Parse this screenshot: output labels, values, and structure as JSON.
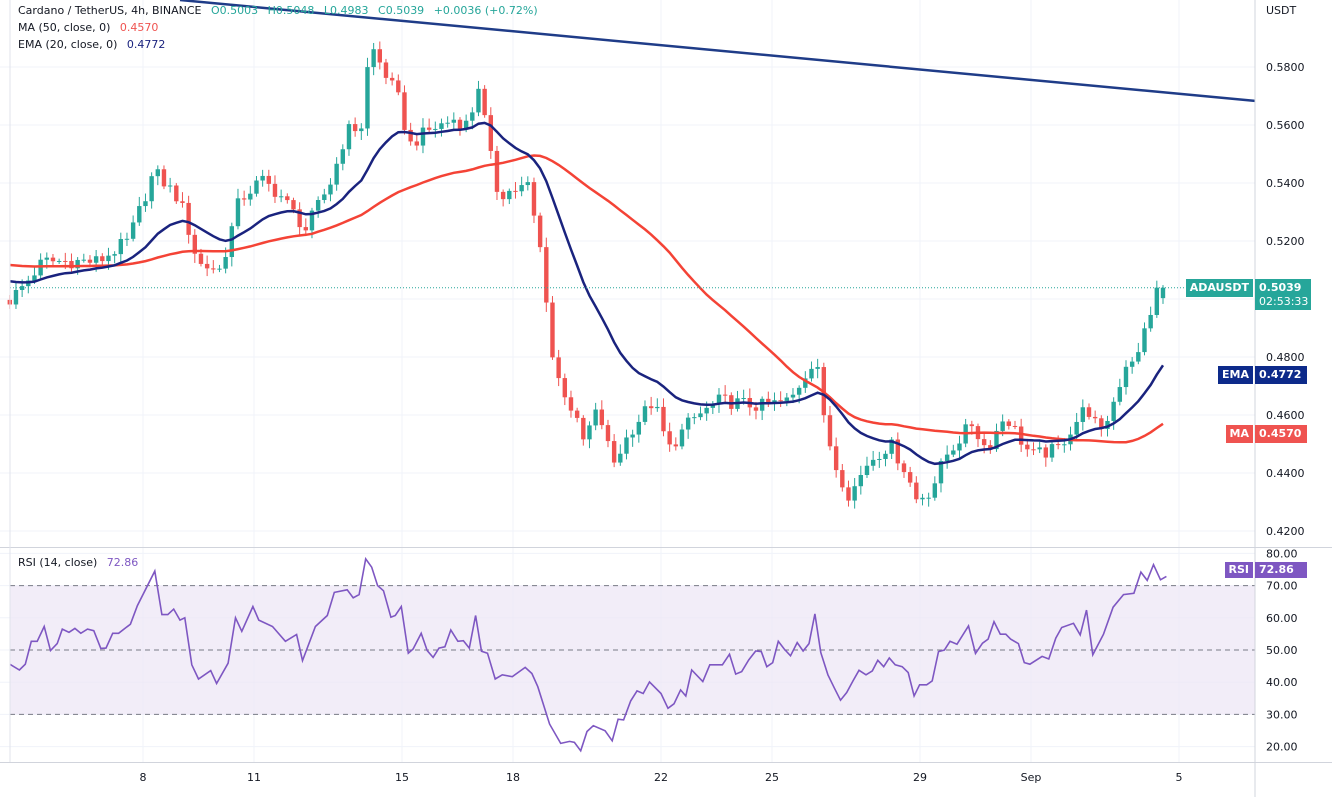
{
  "header": {
    "symbol_line": "Cardano / TetherUS, 4h, BINANCE",
    "open": "O0.5003",
    "high": "H0.5048",
    "low": "L0.4983",
    "close": "C0.5039",
    "change": "+0.0036 (+0.72%)",
    "ma_label": "MA (50, close, 0)",
    "ma_value": "0.4570",
    "ema_label": "EMA (20, close, 0)",
    "ema_value": "0.4772",
    "rsi_label": "RSI (14, close)",
    "rsi_value": "72.86"
  },
  "tags": {
    "symbol": "ADAUSDT",
    "price": "0.5039",
    "countdown": "02:53:33",
    "ema_name": "EMA",
    "ema_value": "0.4772",
    "ma_name": "MA",
    "ma_value": "0.4570",
    "rsi_name": "RSI",
    "rsi_value": "72.86"
  },
  "colors": {
    "up": "#26a69a",
    "down": "#ef5350",
    "ema": "#1a237e",
    "ma": "#f44336",
    "trendline": "#1f3c88",
    "rsi": "#7e57c2",
    "rsi_band": "#ede7f6"
  },
  "chart_data": {
    "type": "candlestick",
    "title": "Cardano / TetherUS, 4h, BINANCE",
    "currency_label": "USDT",
    "price_ticks": [
      "0.5800",
      "0.5600",
      "0.5400",
      "0.5200",
      "0.4800",
      "0.4600",
      "0.4400",
      "0.4200"
    ],
    "time_ticks": [
      {
        "label": "8",
        "day": 8
      },
      {
        "label": "11",
        "day": 11
      },
      {
        "label": "15",
        "day": 15
      },
      {
        "label": "18",
        "day": 18
      },
      {
        "label": "22",
        "day": 22
      },
      {
        "label": "25",
        "day": 25
      },
      {
        "label": "29",
        "day": 29
      },
      {
        "label": "Sep",
        "day": 32
      },
      {
        "label": "5",
        "day": 36
      }
    ],
    "candle_interval_days": 0.16667,
    "first_candle_day": 4.4,
    "last_candle": {
      "open": 0.5003,
      "high": 0.5048,
      "low": 0.4983,
      "close": 0.5039
    },
    "price_path": [
      [
        4.4,
        0.4997
      ],
      [
        4.8,
        0.505
      ],
      [
        5.3,
        0.513
      ],
      [
        6.8,
        0.513
      ],
      [
        7.6,
        0.52
      ],
      [
        8.3,
        0.544
      ],
      [
        9.0,
        0.534
      ],
      [
        9.5,
        0.512
      ],
      [
        10.1,
        0.51
      ],
      [
        10.6,
        0.534
      ],
      [
        11.2,
        0.541
      ],
      [
        11.7,
        0.536
      ],
      [
        12.4,
        0.524
      ],
      [
        13.1,
        0.541
      ],
      [
        13.5,
        0.558
      ],
      [
        14.0,
        0.56
      ],
      [
        14.1,
        0.589
      ],
      [
        14.5,
        0.579
      ],
      [
        14.9,
        0.569
      ],
      [
        15.2,
        0.553
      ],
      [
        15.7,
        0.558
      ],
      [
        16.4,
        0.562
      ],
      [
        16.8,
        0.56
      ],
      [
        17.1,
        0.5755
      ],
      [
        17.3,
        0.555
      ],
      [
        17.6,
        0.536
      ],
      [
        18.4,
        0.539
      ],
      [
        18.8,
        0.513
      ],
      [
        19.1,
        0.476
      ],
      [
        19.5,
        0.465
      ],
      [
        19.9,
        0.451
      ],
      [
        20.3,
        0.462
      ],
      [
        20.7,
        0.443
      ],
      [
        21.2,
        0.455
      ],
      [
        21.8,
        0.465
      ],
      [
        22.2,
        0.448
      ],
      [
        22.8,
        0.458
      ],
      [
        23.6,
        0.465
      ],
      [
        24.7,
        0.463
      ],
      [
        25.5,
        0.465
      ],
      [
        26.2,
        0.481
      ],
      [
        26.4,
        0.458
      ],
      [
        26.7,
        0.443
      ],
      [
        27.1,
        0.432
      ],
      [
        27.6,
        0.444
      ],
      [
        28.2,
        0.45
      ],
      [
        28.6,
        0.441
      ],
      [
        28.9,
        0.431
      ],
      [
        29.3,
        0.434
      ],
      [
        29.7,
        0.446
      ],
      [
        30.4,
        0.457
      ],
      [
        30.8,
        0.448
      ],
      [
        31.3,
        0.46
      ],
      [
        32.0,
        0.446
      ],
      [
        32.7,
        0.448
      ],
      [
        33.5,
        0.463
      ],
      [
        33.9,
        0.453
      ],
      [
        34.3,
        0.467
      ],
      [
        34.6,
        0.479
      ],
      [
        35.0,
        0.481
      ],
      [
        35.1,
        0.493
      ],
      [
        35.2,
        0.491
      ],
      [
        35.3,
        0.505
      ],
      [
        35.5,
        0.5
      ],
      [
        35.6,
        0.5039
      ]
    ],
    "ema_period": 20,
    "ma_period": 50,
    "last_ema": 0.4772,
    "last_ma": 0.457,
    "trendline": [
      [
        9.0,
        0.6031
      ],
      [
        38.05,
        0.5683
      ]
    ],
    "rsi": {
      "period": 14,
      "ticks": [
        "80.00",
        "70.00",
        "60.00",
        "50.00",
        "40.00",
        "30.00",
        "20.00"
      ],
      "band": [
        30,
        70
      ],
      "path": [
        [
          4.4,
          45.6
        ],
        [
          4.66,
          43.8
        ],
        [
          4.82,
          45.6
        ],
        [
          4.98,
          52.7
        ],
        [
          5.14,
          52.7
        ],
        [
          5.33,
          57.3
        ],
        [
          5.5,
          49.8
        ],
        [
          5.68,
          52
        ],
        [
          5.82,
          56.5
        ],
        [
          6.0,
          55.5
        ],
        [
          6.16,
          56.7
        ],
        [
          6.32,
          55.2
        ],
        [
          6.5,
          56.5
        ],
        [
          6.67,
          56
        ],
        [
          6.86,
          50.5
        ],
        [
          7.0,
          50.6
        ],
        [
          7.18,
          55.2
        ],
        [
          7.34,
          55.2
        ],
        [
          7.66,
          58
        ],
        [
          7.85,
          63.8
        ],
        [
          8.32,
          74.5
        ],
        [
          8.51,
          61
        ],
        [
          8.67,
          61
        ],
        [
          8.83,
          62.7
        ],
        [
          9.0,
          59.3
        ],
        [
          9.13,
          60
        ],
        [
          9.32,
          45.4
        ],
        [
          9.5,
          41
        ],
        [
          9.83,
          43.6
        ],
        [
          9.99,
          39.6
        ],
        [
          10.3,
          45.9
        ],
        [
          10.5,
          60
        ],
        [
          10.67,
          55.8
        ],
        [
          10.97,
          63.5
        ],
        [
          11.13,
          59.3
        ],
        [
          11.5,
          57.3
        ],
        [
          11.85,
          52.7
        ],
        [
          12.15,
          54.8
        ],
        [
          12.31,
          46.7
        ],
        [
          12.66,
          57.3
        ],
        [
          12.98,
          60.7
        ],
        [
          13.17,
          67.9
        ],
        [
          13.52,
          68.7
        ],
        [
          13.68,
          66.2
        ],
        [
          13.84,
          67.2
        ],
        [
          14.02,
          78.3
        ],
        [
          14.18,
          75.7
        ],
        [
          14.34,
          70
        ],
        [
          14.5,
          68.4
        ],
        [
          14.7,
          60.2
        ],
        [
          14.82,
          60.7
        ],
        [
          14.98,
          63.5
        ],
        [
          15.17,
          49
        ],
        [
          15.3,
          50.3
        ],
        [
          15.52,
          55.2
        ],
        [
          15.68,
          49.8
        ],
        [
          15.84,
          47.7
        ],
        [
          16.0,
          50.6
        ],
        [
          16.16,
          51
        ],
        [
          16.32,
          56.2
        ],
        [
          16.51,
          52.7
        ],
        [
          16.66,
          52.9
        ],
        [
          16.82,
          50.6
        ],
        [
          16.99,
          60.7
        ],
        [
          17.15,
          49.6
        ],
        [
          17.31,
          49
        ],
        [
          17.52,
          41
        ],
        [
          17.71,
          42.3
        ],
        [
          17.98,
          41.7
        ],
        [
          18.33,
          44.6
        ],
        [
          18.51,
          42.7
        ],
        [
          18.67,
          38.6
        ],
        [
          18.99,
          27
        ],
        [
          19.29,
          21
        ],
        [
          19.53,
          21.6
        ],
        [
          19.66,
          21.3
        ],
        [
          19.83,
          18.7
        ],
        [
          20.0,
          24.7
        ],
        [
          20.17,
          26.5
        ],
        [
          20.49,
          24.9
        ],
        [
          20.68,
          21.8
        ],
        [
          20.84,
          28.5
        ],
        [
          20.99,
          28.3
        ],
        [
          21.18,
          34.2
        ],
        [
          21.35,
          37.3
        ],
        [
          21.52,
          36.5
        ],
        [
          21.69,
          40.1
        ],
        [
          22.0,
          36.5
        ],
        [
          22.19,
          31.9
        ],
        [
          22.35,
          33.3
        ],
        [
          22.53,
          37.6
        ],
        [
          22.67,
          35.7
        ],
        [
          22.83,
          43.8
        ],
        [
          23.13,
          40.2
        ],
        [
          23.32,
          45.4
        ],
        [
          23.66,
          45.4
        ],
        [
          23.85,
          48.7
        ],
        [
          24.02,
          42.5
        ],
        [
          24.18,
          43.3
        ],
        [
          24.37,
          46.9
        ],
        [
          24.56,
          49.7
        ],
        [
          24.71,
          49.5
        ],
        [
          24.86,
          44.8
        ],
        [
          25.02,
          46.1
        ],
        [
          25.17,
          52.7
        ],
        [
          25.33,
          50.3
        ],
        [
          25.5,
          48.2
        ],
        [
          25.68,
          52.3
        ],
        [
          25.84,
          49.7
        ],
        [
          26.0,
          52
        ],
        [
          26.16,
          61.2
        ],
        [
          26.32,
          49.2
        ],
        [
          26.51,
          42.3
        ],
        [
          26.69,
          38.1
        ],
        [
          26.85,
          34.4
        ],
        [
          27.02,
          36.8
        ],
        [
          27.19,
          40.4
        ],
        [
          27.35,
          43.7
        ],
        [
          27.54,
          42.3
        ],
        [
          27.71,
          43.5
        ],
        [
          27.86,
          46.8
        ],
        [
          28.02,
          44.8
        ],
        [
          28.17,
          47.5
        ],
        [
          28.33,
          45.4
        ],
        [
          28.52,
          44.8
        ],
        [
          28.68,
          43
        ],
        [
          28.84,
          35.7
        ],
        [
          28.99,
          39.2
        ],
        [
          29.18,
          39.2
        ],
        [
          29.33,
          40.4
        ],
        [
          29.5,
          49.5
        ],
        [
          29.66,
          50
        ],
        [
          29.81,
          52.7
        ],
        [
          30.0,
          51.8
        ],
        [
          30.31,
          57.5
        ],
        [
          30.5,
          48.9
        ],
        [
          30.69,
          52.1
        ],
        [
          30.84,
          53.4
        ],
        [
          31.0,
          58.8
        ],
        [
          31.17,
          54.9
        ],
        [
          31.32,
          54.9
        ],
        [
          31.45,
          53.4
        ],
        [
          31.66,
          52
        ],
        [
          31.82,
          46.1
        ],
        [
          31.97,
          45.6
        ],
        [
          32.3,
          48
        ],
        [
          32.48,
          47.2
        ],
        [
          32.67,
          53.7
        ],
        [
          32.83,
          57
        ],
        [
          33.15,
          58.3
        ],
        [
          33.33,
          54.7
        ],
        [
          33.5,
          62.4
        ],
        [
          33.67,
          48.5
        ],
        [
          33.96,
          54.9
        ],
        [
          34.22,
          63.3
        ],
        [
          34.5,
          67.2
        ],
        [
          34.78,
          67.6
        ],
        [
          34.97,
          74.2
        ],
        [
          35.14,
          71.6
        ],
        [
          35.31,
          76.5
        ],
        [
          35.5,
          71.8
        ],
        [
          35.66,
          72.86
        ]
      ]
    }
  }
}
